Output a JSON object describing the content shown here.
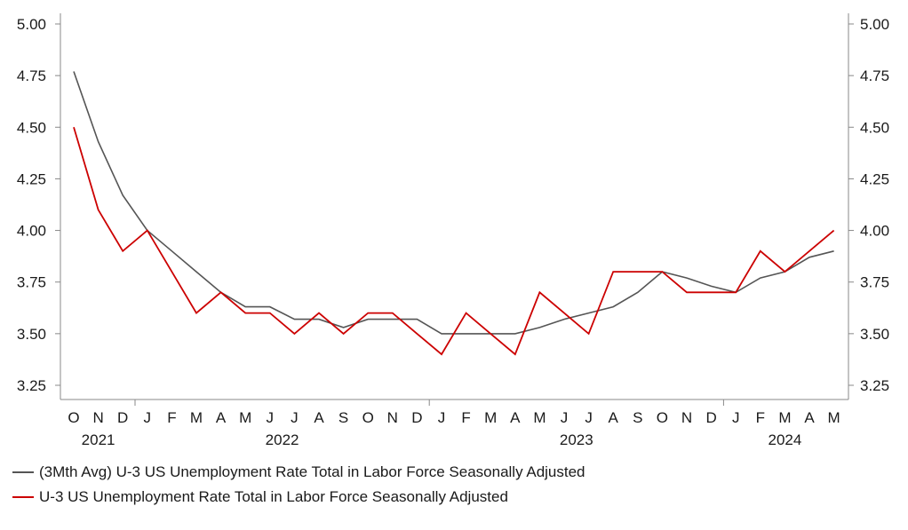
{
  "chart_data": {
    "type": "line",
    "title": "",
    "xlabel": "",
    "ylabel": "",
    "ylim": [
      3.25,
      5.0
    ],
    "yticks": [
      "5.00",
      "4.75",
      "4.50",
      "4.25",
      "4.00",
      "3.75",
      "3.50",
      "3.25"
    ],
    "y_axes": "both",
    "grid": false,
    "legend_position": "bottom-left",
    "categories": [
      "O",
      "N",
      "D",
      "J",
      "F",
      "M",
      "A",
      "M",
      "J",
      "J",
      "A",
      "S",
      "O",
      "N",
      "D",
      "J",
      "F",
      "M",
      "A",
      "M",
      "J",
      "J",
      "A",
      "S",
      "O",
      "N",
      "D",
      "J",
      "F",
      "M",
      "A",
      "M"
    ],
    "year_labels": [
      {
        "label": "2021",
        "index": 1
      },
      {
        "label": "2022",
        "index": 8.5
      },
      {
        "label": "2023",
        "index": 20.5
      },
      {
        "label": "2024",
        "index": 29
      }
    ],
    "year_separators": [
      2.5,
      14.5,
      26.5
    ],
    "series": [
      {
        "name": "(3Mth Avg) U-3 US Unemployment Rate Total in Labor Force Seasonally Adjusted",
        "color": "#555555",
        "values": [
          4.77,
          4.43,
          4.17,
          4.0,
          3.9,
          3.8,
          3.7,
          3.63,
          3.63,
          3.57,
          3.57,
          3.53,
          3.57,
          3.57,
          3.57,
          3.5,
          3.5,
          3.5,
          3.5,
          3.53,
          3.57,
          3.6,
          3.63,
          3.7,
          3.8,
          3.77,
          3.73,
          3.7,
          3.77,
          3.8,
          3.87,
          3.9
        ]
      },
      {
        "name": "U-3 US Unemployment Rate Total in Labor Force Seasonally Adjusted",
        "color": "#cc0000",
        "values": [
          4.5,
          4.1,
          3.9,
          4.0,
          3.8,
          3.6,
          3.7,
          3.6,
          3.6,
          3.5,
          3.6,
          3.5,
          3.6,
          3.6,
          3.5,
          3.4,
          3.6,
          3.5,
          3.4,
          3.7,
          3.6,
          3.5,
          3.8,
          3.8,
          3.8,
          3.7,
          3.7,
          3.7,
          3.9,
          3.8,
          3.9,
          4.0
        ]
      }
    ]
  }
}
